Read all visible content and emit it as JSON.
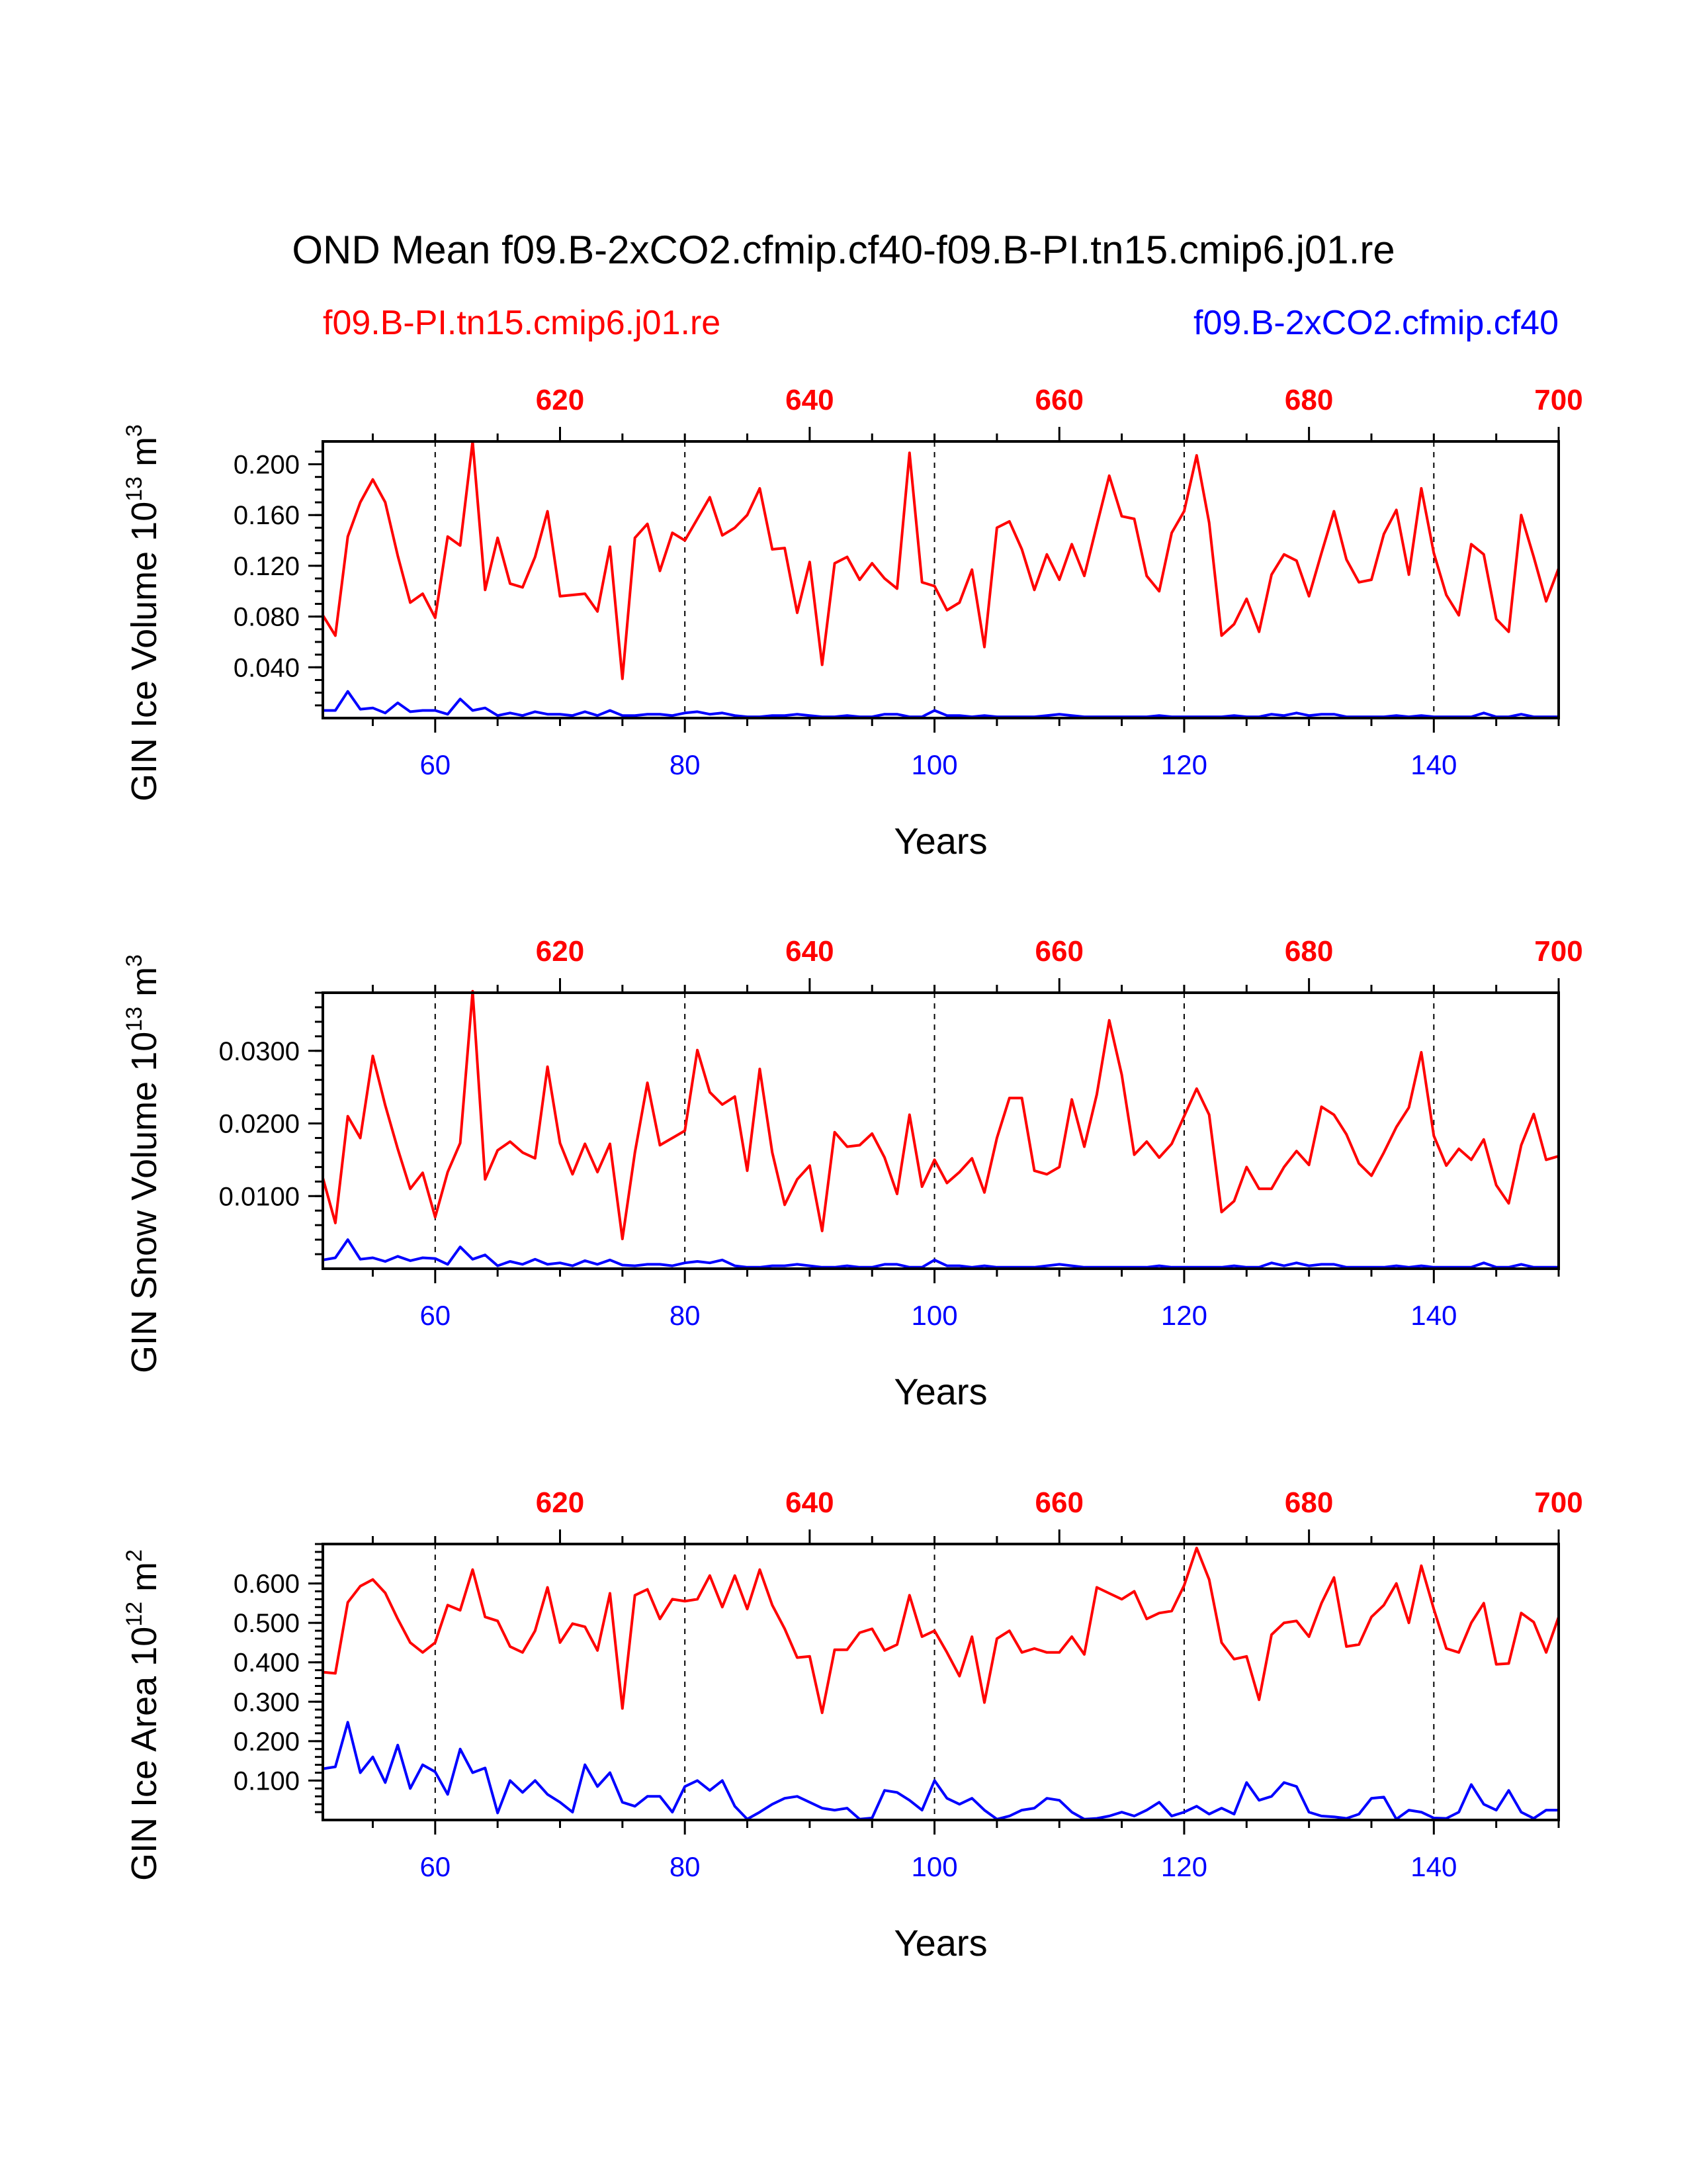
{
  "chart_data": {
    "type": "line",
    "title": "OND Mean f09.B-2xCO2.cfmip.cf40-f09.B-PI.tn15.cmip6.j01.re",
    "legend": {
      "left": {
        "text": "f09.B-PI.tn15.cmip6.j01.re",
        "color": "#ff0000"
      },
      "right": {
        "text": "f09.B-2xCO2.cfmip.cf40",
        "color": "#0000ff"
      }
    },
    "xlabel": "Years",
    "x_bottom": {
      "range": [
        51,
        150
      ],
      "ticks": [
        60,
        80,
        100,
        120,
        140
      ],
      "color": "#0000ff"
    },
    "x_top": {
      "range": [
        601,
        700
      ],
      "ticks": [
        620,
        640,
        660,
        680,
        700
      ],
      "color": "#ff0000"
    },
    "gridlines_x": [
      60,
      80,
      100,
      120,
      140
    ],
    "panels": [
      {
        "ylabel": "GIN Ice Volume 10",
        "ylabel_exp": "13",
        "ylabel_unit": " m",
        "ylabel_unit_exp": "3",
        "ylim": [
          0.0,
          0.218
        ],
        "yticks": [
          0.04,
          0.08,
          0.12,
          0.16,
          0.2
        ],
        "yticklabels": [
          "0.040",
          "0.080",
          "0.120",
          "0.160",
          "0.200"
        ],
        "yminor": 0.01,
        "series": [
          {
            "name": "f09.B-PI.tn15.cmip6.j01.re",
            "color": "#ff0000",
            "values": [
              0.081,
              0.065,
              0.143,
              0.17,
              0.188,
              0.17,
              0.128,
              0.091,
              0.098,
              0.079,
              0.143,
              0.136,
              0.218,
              0.101,
              0.142,
              0.106,
              0.103,
              0.127,
              0.163,
              0.096,
              0.097,
              0.098,
              0.084,
              0.135,
              0.031,
              0.142,
              0.153,
              0.116,
              0.146,
              0.14,
              0.157,
              0.174,
              0.144,
              0.15,
              0.16,
              0.181,
              0.133,
              0.134,
              0.083,
              0.123,
              0.042,
              0.122,
              0.127,
              0.109,
              0.122,
              0.11,
              0.102,
              0.209,
              0.107,
              0.104,
              0.085,
              0.091,
              0.117,
              0.056,
              0.15,
              0.155,
              0.133,
              0.101,
              0.129,
              0.109,
              0.137,
              0.112,
              0.152,
              0.191,
              0.159,
              0.157,
              0.112,
              0.1,
              0.146,
              0.163,
              0.207,
              0.154,
              0.065,
              0.074,
              0.094,
              0.068,
              0.113,
              0.129,
              0.124,
              0.096,
              0.13,
              0.163,
              0.125,
              0.107,
              0.109,
              0.145,
              0.164,
              0.113,
              0.181,
              0.13,
              0.097,
              0.081,
              0.137,
              0.129,
              0.078,
              0.068,
              0.16,
              0.127,
              0.092,
              0.118
            ]
          },
          {
            "name": "f09.B-2xCO2.cfmip.cf40",
            "color": "#0000ff",
            "values": [
              0.006,
              0.006,
              0.021,
              0.007,
              0.008,
              0.004,
              0.012,
              0.005,
              0.006,
              0.006,
              0.003,
              0.015,
              0.006,
              0.008,
              0.002,
              0.004,
              0.002,
              0.005,
              0.003,
              0.003,
              0.002,
              0.005,
              0.002,
              0.006,
              0.002,
              0.002,
              0.003,
              0.003,
              0.002,
              0.004,
              0.005,
              0.003,
              0.004,
              0.002,
              0.001,
              0.001,
              0.002,
              0.002,
              0.003,
              0.002,
              0.001,
              0.001,
              0.002,
              0.001,
              0.001,
              0.003,
              0.003,
              0.001,
              0.001,
              0.006,
              0.002,
              0.002,
              0.001,
              0.002,
              0.001,
              0.001,
              0.001,
              0.001,
              0.002,
              0.003,
              0.002,
              0.001,
              0.001,
              0.001,
              0.001,
              0.001,
              0.001,
              0.002,
              0.001,
              0.001,
              0.001,
              0.001,
              0.001,
              0.002,
              0.001,
              0.001,
              0.003,
              0.002,
              0.004,
              0.002,
              0.003,
              0.003,
              0.001,
              0.001,
              0.001,
              0.001,
              0.002,
              0.001,
              0.002,
              0.001,
              0.001,
              0.001,
              0.001,
              0.004,
              0.001,
              0.001,
              0.003,
              0.001,
              0.001,
              0.001
            ]
          }
        ]
      },
      {
        "ylabel": "GIN Snow Volume 10",
        "ylabel_exp": "13",
        "ylabel_unit": " m",
        "ylabel_unit_exp": "3",
        "ylim": [
          0.0,
          0.038
        ],
        "yticks": [
          0.01,
          0.02,
          0.03
        ],
        "yticklabels": [
          "0.0100",
          "0.0200",
          "0.0300"
        ],
        "yminor": 0.002,
        "series": [
          {
            "name": "f09.B-PI.tn15.cmip6.j01.re",
            "color": "#ff0000",
            "values": [
              0.0125,
              0.0063,
              0.021,
              0.018,
              0.0293,
              0.0225,
              0.0165,
              0.011,
              0.0132,
              0.0071,
              0.0133,
              0.0173,
              0.0382,
              0.0123,
              0.0163,
              0.0175,
              0.016,
              0.0152,
              0.0278,
              0.0173,
              0.013,
              0.0172,
              0.0133,
              0.0172,
              0.0041,
              0.016,
              0.0256,
              0.017,
              0.018,
              0.019,
              0.0301,
              0.0243,
              0.0226,
              0.0237,
              0.0135,
              0.0275,
              0.016,
              0.0088,
              0.0123,
              0.0142,
              0.0052,
              0.0188,
              0.0168,
              0.017,
              0.0186,
              0.0153,
              0.0103,
              0.0212,
              0.0113,
              0.015,
              0.0118,
              0.0133,
              0.0152,
              0.0105,
              0.018,
              0.0235,
              0.0235,
              0.0135,
              0.013,
              0.014,
              0.0233,
              0.0168,
              0.024,
              0.0342,
              0.0267,
              0.0157,
              0.0175,
              0.0153,
              0.0172,
              0.021,
              0.0248,
              0.0212,
              0.0078,
              0.0093,
              0.014,
              0.011,
              0.011,
              0.014,
              0.0162,
              0.0143,
              0.0223,
              0.0212,
              0.0185,
              0.0145,
              0.0128,
              0.016,
              0.0195,
              0.0222,
              0.0298,
              0.0183,
              0.0142,
              0.0165,
              0.015,
              0.0178,
              0.0115,
              0.009,
              0.017,
              0.0213,
              0.015,
              0.0155
            ]
          },
          {
            "name": "f09.B-2xCO2.cfmip.cf40",
            "color": "#0000ff",
            "values": [
              0.0012,
              0.0015,
              0.004,
              0.0013,
              0.0015,
              0.001,
              0.0017,
              0.0011,
              0.0015,
              0.0014,
              0.0006,
              0.003,
              0.0013,
              0.0019,
              0.0004,
              0.001,
              0.0006,
              0.0013,
              0.0006,
              0.0008,
              0.0004,
              0.0011,
              0.0006,
              0.0012,
              0.0005,
              0.0004,
              0.0006,
              0.0006,
              0.0004,
              0.0008,
              0.001,
              0.0008,
              0.0012,
              0.0004,
              0.0002,
              0.0002,
              0.0004,
              0.0004,
              0.0006,
              0.0004,
              0.0002,
              0.0002,
              0.0004,
              0.0002,
              0.0002,
              0.0006,
              0.0006,
              0.0002,
              0.0002,
              0.0012,
              0.0004,
              0.0004,
              0.0002,
              0.0004,
              0.0002,
              0.0002,
              0.0002,
              0.0002,
              0.0004,
              0.0006,
              0.0004,
              0.0002,
              0.0002,
              0.0002,
              0.0002,
              0.0002,
              0.0002,
              0.0004,
              0.0002,
              0.0002,
              0.0002,
              0.0002,
              0.0002,
              0.0004,
              0.0002,
              0.0002,
              0.0008,
              0.0004,
              0.0008,
              0.0004,
              0.0006,
              0.0006,
              0.0002,
              0.0002,
              0.0002,
              0.0002,
              0.0004,
              0.0002,
              0.0004,
              0.0002,
              0.0002,
              0.0002,
              0.0002,
              0.0008,
              0.0002,
              0.0002,
              0.0006,
              0.0002,
              0.0002,
              0.0002
            ]
          }
        ]
      },
      {
        "ylabel": "GIN Ice Area 10",
        "ylabel_exp": "12",
        "ylabel_unit": " m",
        "ylabel_unit_exp": "2",
        "ylim": [
          0.0,
          0.7
        ],
        "yticks": [
          0.1,
          0.2,
          0.3,
          0.4,
          0.5,
          0.6
        ],
        "yticklabels": [
          "0.100",
          "0.200",
          "0.300",
          "0.400",
          "0.500",
          "0.600"
        ],
        "yminor": 0.02,
        "series": [
          {
            "name": "f09.B-PI.tn15.cmip6.j01.re",
            "color": "#ff0000",
            "values": [
              0.375,
              0.372,
              0.552,
              0.593,
              0.61,
              0.576,
              0.51,
              0.45,
              0.425,
              0.45,
              0.545,
              0.532,
              0.635,
              0.515,
              0.505,
              0.44,
              0.425,
              0.48,
              0.59,
              0.45,
              0.498,
              0.49,
              0.43,
              0.575,
              0.283,
              0.57,
              0.585,
              0.51,
              0.56,
              0.555,
              0.56,
              0.62,
              0.54,
              0.62,
              0.535,
              0.635,
              0.545,
              0.485,
              0.412,
              0.415,
              0.272,
              0.432,
              0.432,
              0.475,
              0.485,
              0.43,
              0.445,
              0.57,
              0.465,
              0.48,
              0.425,
              0.365,
              0.465,
              0.298,
              0.46,
              0.48,
              0.425,
              0.435,
              0.425,
              0.425,
              0.465,
              0.42,
              0.59,
              0.575,
              0.56,
              0.58,
              0.51,
              0.525,
              0.53,
              0.595,
              0.69,
              0.61,
              0.45,
              0.408,
              0.415,
              0.305,
              0.47,
              0.5,
              0.505,
              0.465,
              0.55,
              0.615,
              0.44,
              0.445,
              0.515,
              0.545,
              0.6,
              0.5,
              0.645,
              0.535,
              0.435,
              0.425,
              0.5,
              0.55,
              0.395,
              0.397,
              0.525,
              0.502,
              0.425,
              0.515
            ]
          },
          {
            "name": "f09.B-2xCO2.cfmip.cf40",
            "color": "#0000ff",
            "values": [
              0.13,
              0.135,
              0.248,
              0.12,
              0.16,
              0.095,
              0.19,
              0.08,
              0.14,
              0.122,
              0.065,
              0.18,
              0.12,
              0.132,
              0.018,
              0.1,
              0.07,
              0.1,
              0.065,
              0.045,
              0.02,
              0.14,
              0.085,
              0.12,
              0.045,
              0.035,
              0.06,
              0.06,
              0.02,
              0.085,
              0.1,
              0.075,
              0.1,
              0.035,
              0.002,
              0.02,
              0.04,
              0.055,
              0.06,
              0.045,
              0.03,
              0.025,
              0.03,
              0.002,
              0.005,
              0.075,
              0.07,
              0.05,
              0.025,
              0.1,
              0.055,
              0.04,
              0.055,
              0.025,
              0.002,
              0.01,
              0.025,
              0.03,
              0.055,
              0.05,
              0.02,
              0.002,
              0.004,
              0.01,
              0.02,
              0.01,
              0.025,
              0.045,
              0.01,
              0.02,
              0.035,
              0.015,
              0.03,
              0.015,
              0.095,
              0.05,
              0.06,
              0.095,
              0.085,
              0.02,
              0.01,
              0.008,
              0.004,
              0.015,
              0.055,
              0.058,
              0.002,
              0.025,
              0.02,
              0.005,
              0.004,
              0.02,
              0.09,
              0.04,
              0.025,
              0.075,
              0.02,
              0.004,
              0.025,
              0.025
            ]
          }
        ]
      }
    ]
  }
}
